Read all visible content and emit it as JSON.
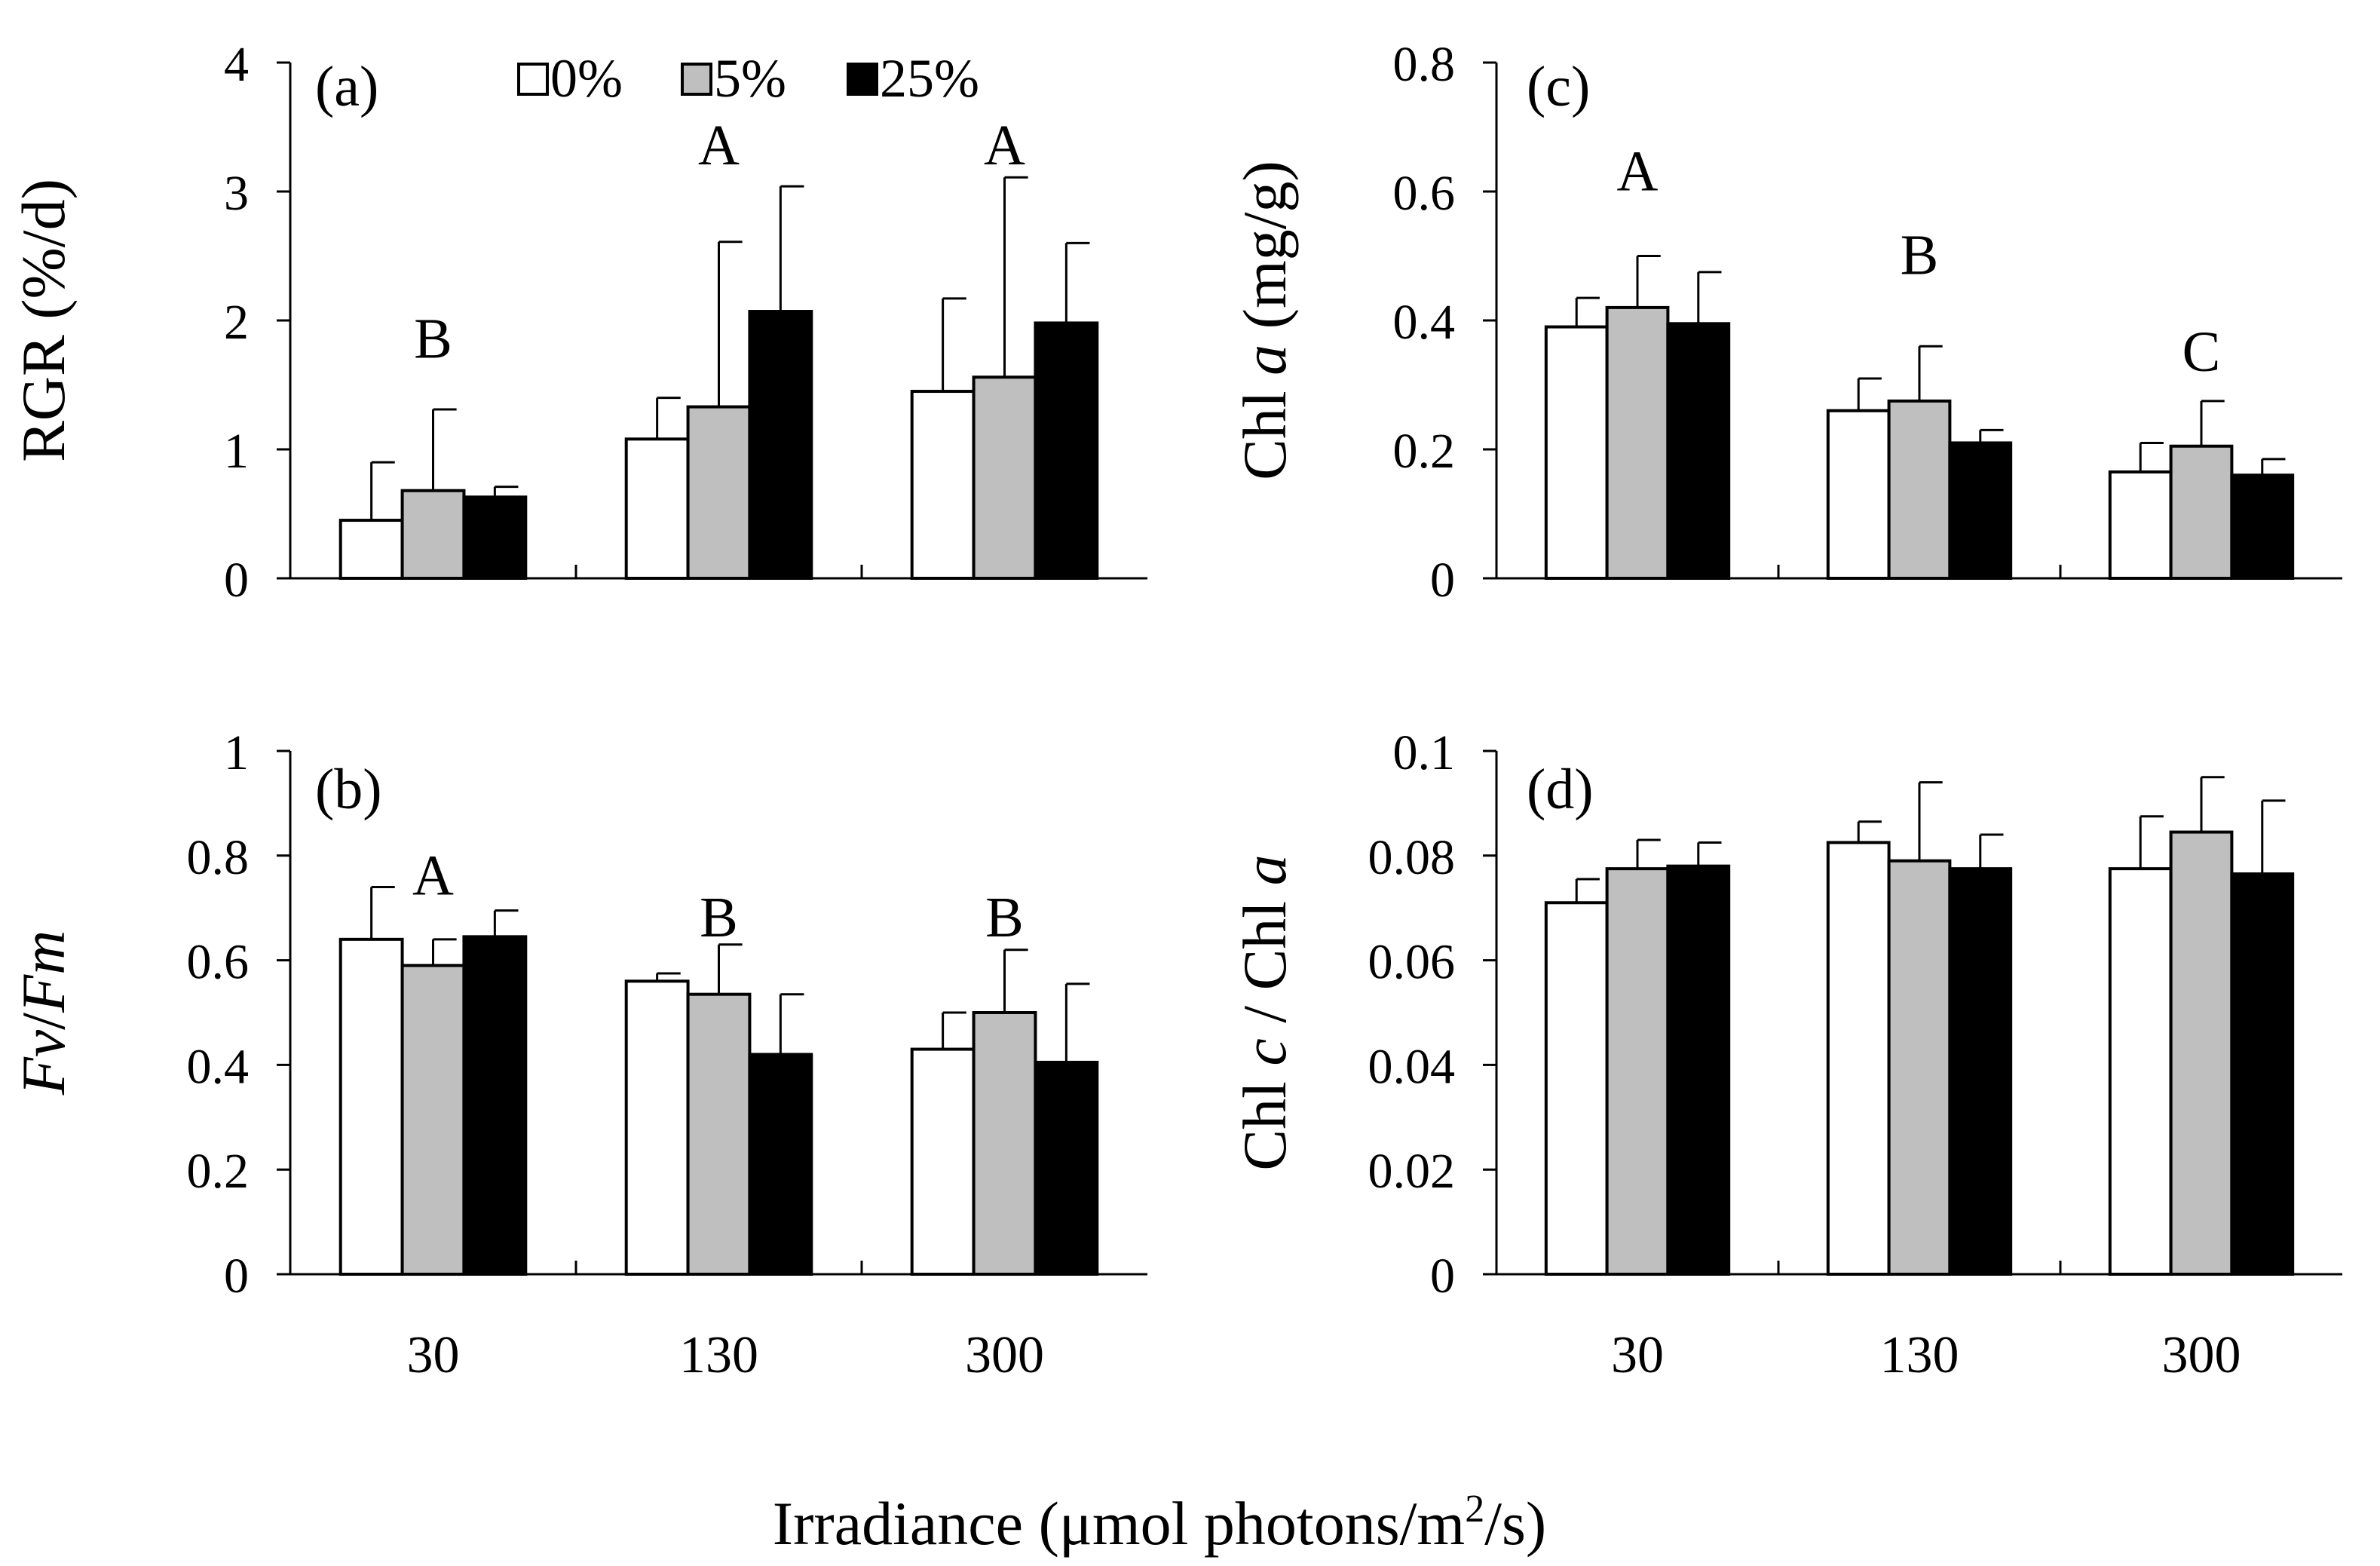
{
  "figure": {
    "xlabel_prefix": "Irradiance (μmol photons/m",
    "xlabel_sup": "2",
    "xlabel_suffix": "/s)"
  },
  "legend": {
    "entries": [
      {
        "label": "0%",
        "color": "#ffffff"
      },
      {
        "label": "5%",
        "color": "#bfbfbf"
      },
      {
        "label": "25%",
        "color": "#000000"
      }
    ]
  },
  "chart_data": [
    {
      "id": "a",
      "type": "bar",
      "panel_label": "(a)",
      "ylabel_parts": [
        {
          "text": "RGR (%/d)",
          "italic": false
        }
      ],
      "ylim": [
        0,
        4
      ],
      "yticks": [
        "0",
        "1",
        "2",
        "3",
        "4"
      ],
      "categories": [
        "30",
        "130",
        "300"
      ],
      "series": [
        {
          "name": "0%",
          "values": [
            0.45,
            1.08,
            1.45
          ],
          "errors": [
            0.45,
            0.32,
            0.72
          ]
        },
        {
          "name": "5%",
          "values": [
            0.68,
            1.33,
            1.56
          ],
          "errors": [
            0.63,
            1.28,
            1.55
          ]
        },
        {
          "name": "25%",
          "values": [
            0.63,
            2.07,
            1.98
          ],
          "errors": [
            0.08,
            0.97,
            0.62
          ]
        }
      ],
      "group_labels": [
        "B",
        "A",
        "A"
      ],
      "group_label_values": [
        1.85,
        3.35,
        3.35
      ]
    },
    {
      "id": "b",
      "type": "bar",
      "panel_label": "(b)",
      "ylabel_parts": [
        {
          "text": "Fv",
          "italic": true
        },
        {
          "text": "/",
          "italic": false
        },
        {
          "text": "Fm",
          "italic": true
        }
      ],
      "ylim": [
        0,
        1
      ],
      "yticks": [
        "0",
        "0.2",
        "0.4",
        "0.6",
        "0.8",
        "1"
      ],
      "categories": [
        "30",
        "130",
        "300"
      ],
      "series": [
        {
          "name": "0%",
          "values": [
            0.64,
            0.56,
            0.43
          ],
          "errors": [
            0.1,
            0.015,
            0.07
          ]
        },
        {
          "name": "5%",
          "values": [
            0.59,
            0.535,
            0.5
          ],
          "errors": [
            0.05,
            0.095,
            0.12
          ]
        },
        {
          "name": "25%",
          "values": [
            0.645,
            0.42,
            0.405
          ],
          "errors": [
            0.05,
            0.115,
            0.15
          ]
        }
      ],
      "group_labels": [
        "A",
        "B",
        "B"
      ],
      "group_label_values": [
        0.76,
        0.68,
        0.68
      ]
    },
    {
      "id": "c",
      "type": "bar",
      "panel_label": "(c)",
      "ylabel_parts": [
        {
          "text": "Chl ",
          "italic": false
        },
        {
          "text": "a",
          "italic": true
        },
        {
          "text": " (mg/g)",
          "italic": false
        }
      ],
      "ylim": [
        0,
        0.8
      ],
      "yticks": [
        "0",
        "0.2",
        "0.4",
        "0.6",
        "0.8"
      ],
      "categories": [
        "30",
        "130",
        "300"
      ],
      "series": [
        {
          "name": "0%",
          "values": [
            0.39,
            0.26,
            0.165
          ],
          "errors": [
            0.045,
            0.05,
            0.045
          ]
        },
        {
          "name": "5%",
          "values": [
            0.42,
            0.275,
            0.205
          ],
          "errors": [
            0.08,
            0.085,
            0.07
          ]
        },
        {
          "name": "25%",
          "values": [
            0.395,
            0.21,
            0.16
          ],
          "errors": [
            0.08,
            0.02,
            0.025
          ]
        }
      ],
      "group_labels": [
        "A",
        "B",
        "C"
      ],
      "group_label_values": [
        0.63,
        0.5,
        0.35
      ]
    },
    {
      "id": "d",
      "type": "bar",
      "panel_label": "(d)",
      "ylabel_parts": [
        {
          "text": "Chl ",
          "italic": false
        },
        {
          "text": "c",
          "italic": true
        },
        {
          "text": " / Chl ",
          "italic": false
        },
        {
          "text": "a",
          "italic": true
        }
      ],
      "ylim": [
        0,
        0.1
      ],
      "yticks": [
        "0",
        "0.02",
        "0.04",
        "0.06",
        "0.08",
        "0.1"
      ],
      "categories": [
        "30",
        "130",
        "300"
      ],
      "series": [
        {
          "name": "0%",
          "values": [
            0.071,
            0.0825,
            0.0775
          ],
          "errors": [
            0.0045,
            0.004,
            0.01
          ]
        },
        {
          "name": "5%",
          "values": [
            0.0775,
            0.079,
            0.0845
          ],
          "errors": [
            0.0055,
            0.015,
            0.0105
          ]
        },
        {
          "name": "25%",
          "values": [
            0.078,
            0.0775,
            0.0765
          ],
          "errors": [
            0.0045,
            0.0065,
            0.014
          ]
        }
      ],
      "group_labels": [
        "",
        "",
        ""
      ],
      "group_label_values": [
        0,
        0,
        0
      ]
    }
  ]
}
